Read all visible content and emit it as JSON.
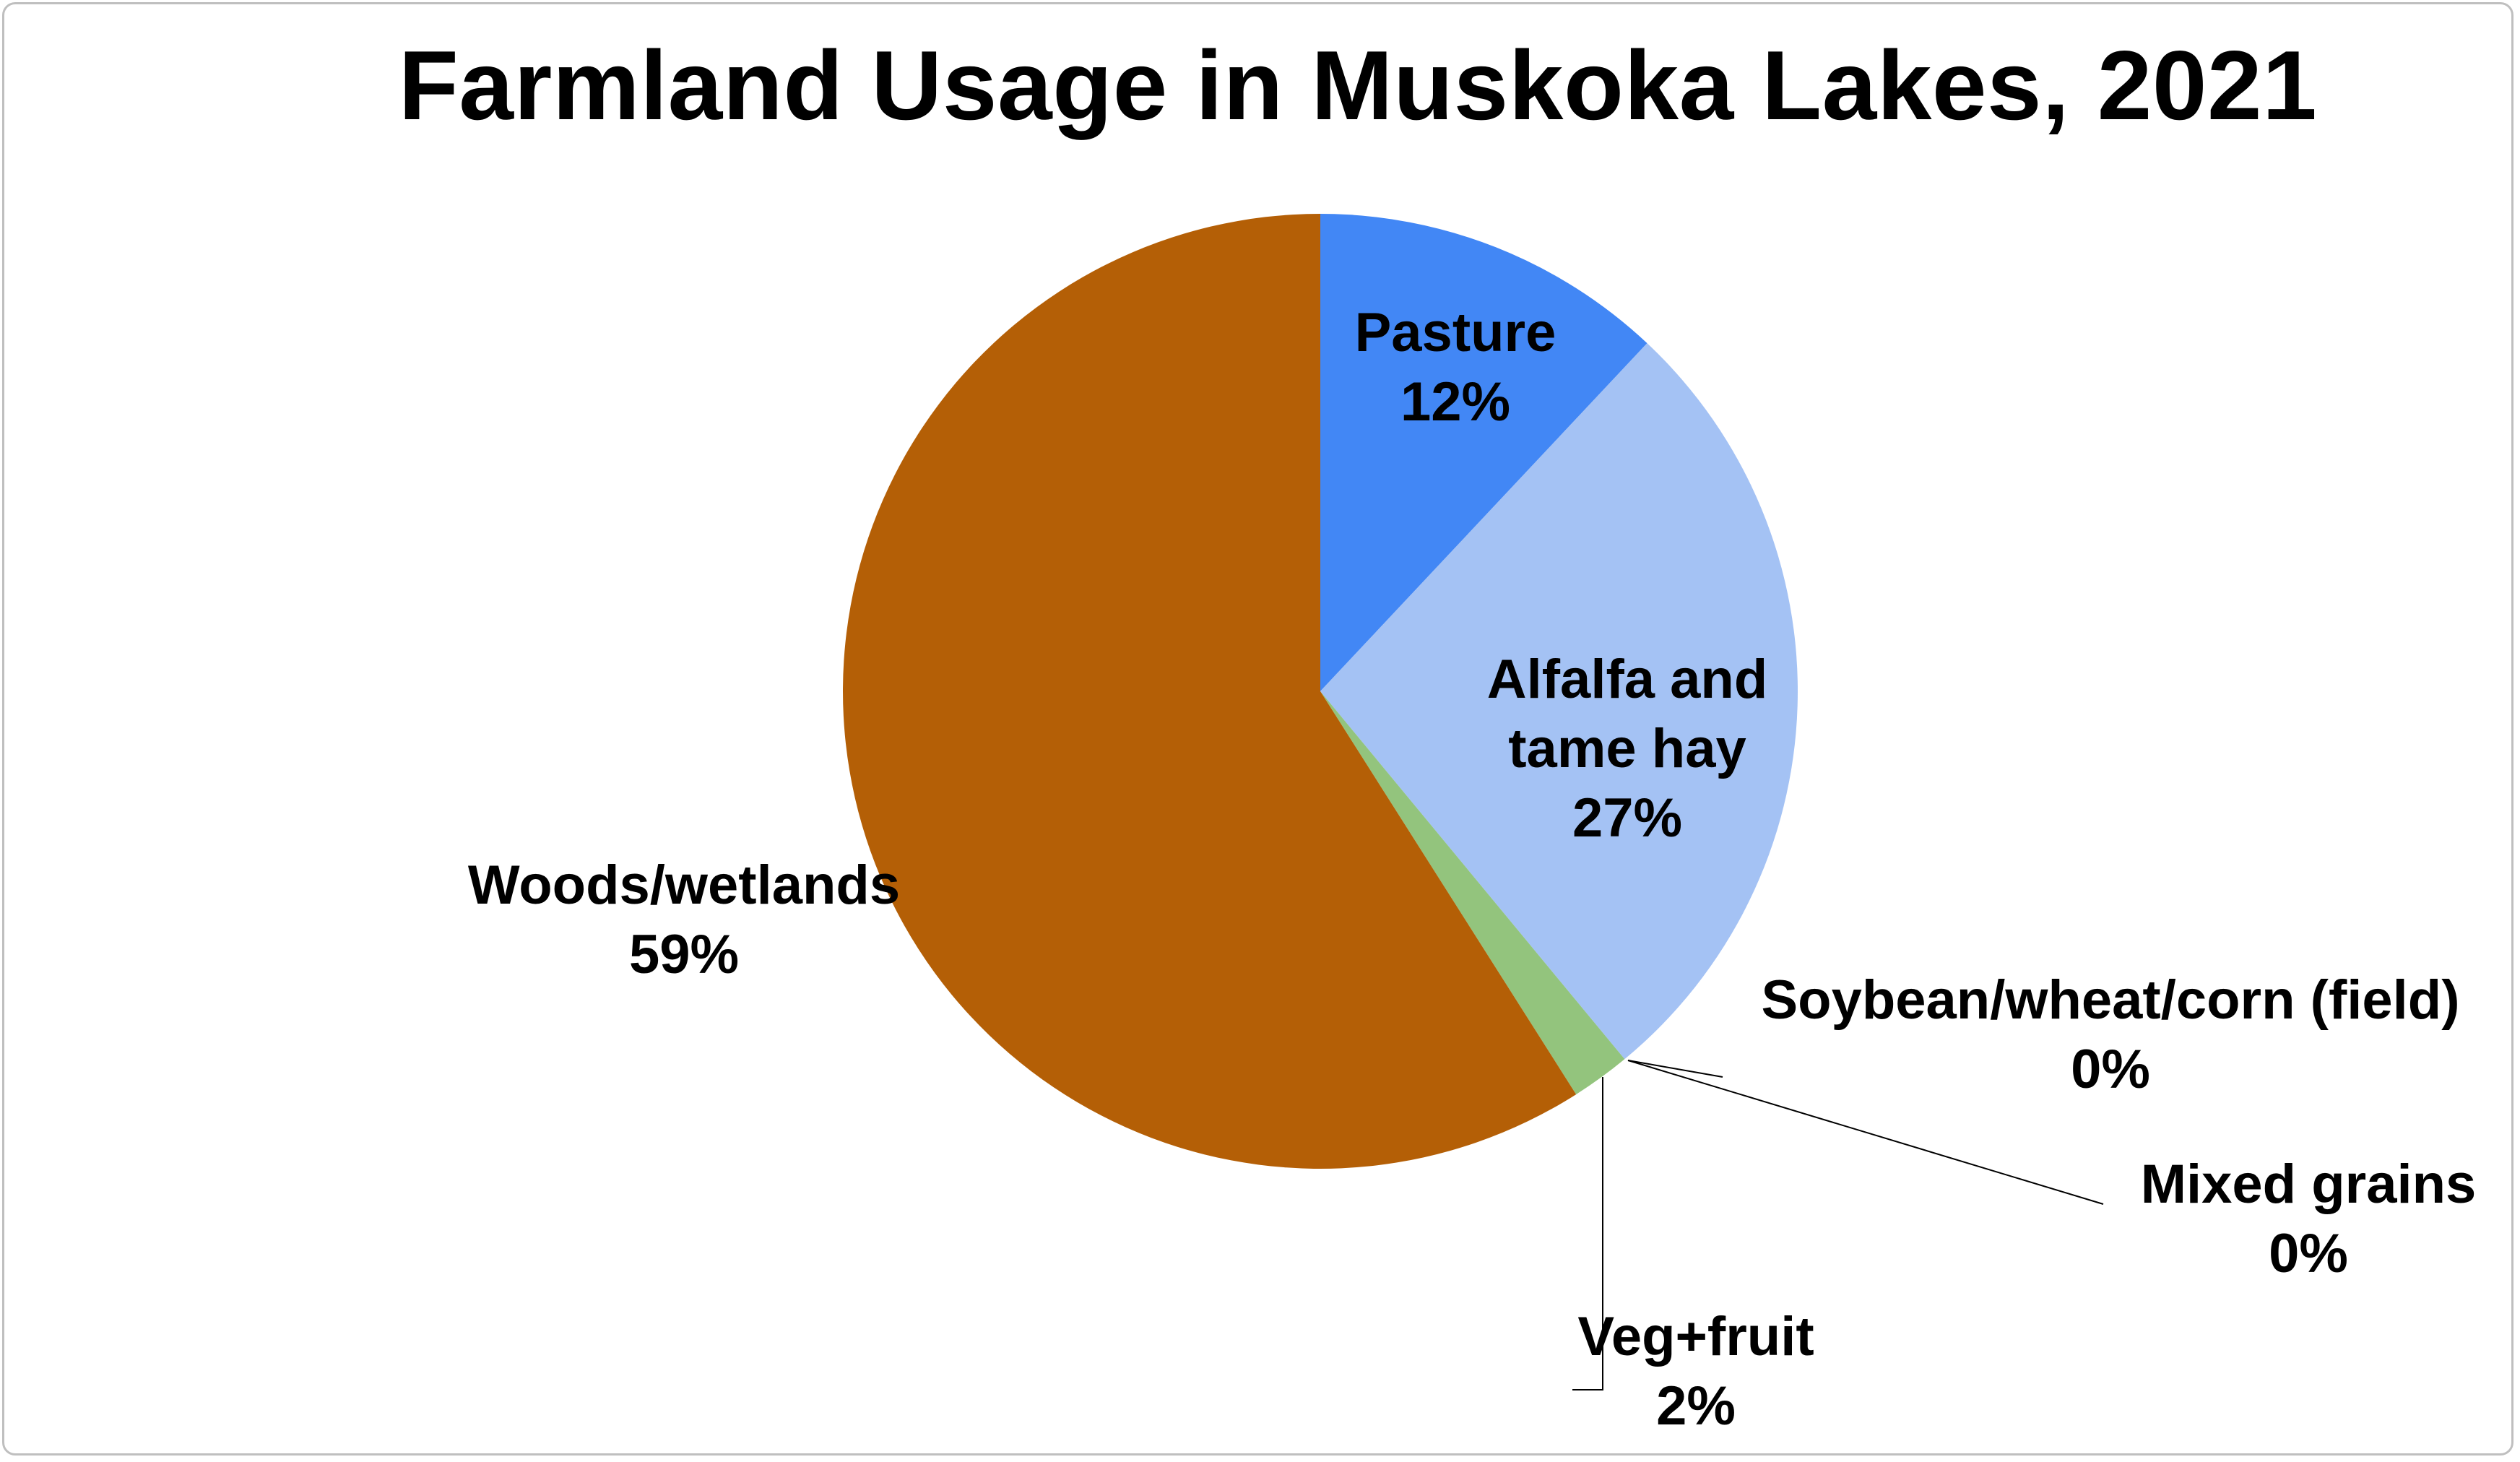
{
  "chart_data": {
    "type": "pie",
    "title": "Farmland Usage in Muskoka Lakes, 2021",
    "start_angle": "top, clockwise",
    "slices": [
      {
        "name": "Pasture",
        "value": 12,
        "label": "12%",
        "color": "#4287f5"
      },
      {
        "name": "Alfalfa and tame hay",
        "value": 27,
        "label": "27%",
        "color": "#a4c2f4"
      },
      {
        "name": "Soybean/wheat/corn (field)",
        "value": 0,
        "label": "0%",
        "color": "#a4c2f4"
      },
      {
        "name": "Mixed grains",
        "value": 0,
        "label": "0%",
        "color": "#93c47d"
      },
      {
        "name": "Veg+fruit",
        "value": 2,
        "label": "2%",
        "color": "#93c47d"
      },
      {
        "name": "Woods/wetlands",
        "value": 59,
        "label": "59%",
        "color": "#b45f06"
      }
    ],
    "legend": "none",
    "data_labels": "category name and percent",
    "border_color": "#bfbfbf"
  }
}
